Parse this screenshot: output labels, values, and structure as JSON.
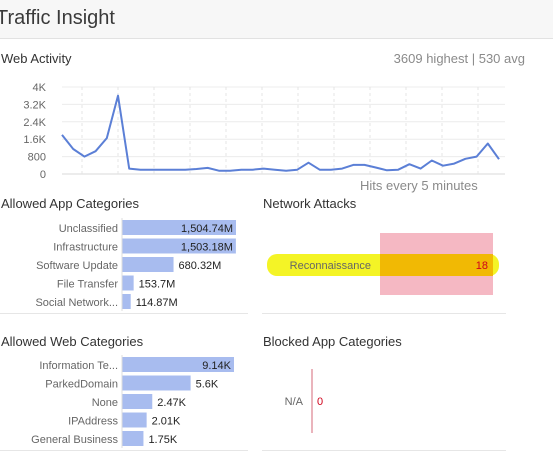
{
  "header": {
    "title": "Traffic Insight"
  },
  "web_activity": {
    "title": "Web Activity",
    "stats": "3609 highest | 530 avg",
    "footer": "Hits every 5 minutes",
    "y_ticks": [
      "0",
      "800",
      "1.6K",
      "2.4K",
      "3.2K",
      "4K"
    ],
    "line_color": "#5b7fd6"
  },
  "allowed_app": {
    "title": "Allowed App Categories",
    "bar_color": "#a8bcef"
  },
  "network_attacks": {
    "title": "Network Attacks",
    "bar_color": "#f5b8c3",
    "value_color": "#d0021b"
  },
  "allowed_web": {
    "title": "Allowed Web Categories",
    "bar_color": "#a8bcef"
  },
  "blocked_app": {
    "title": "Blocked App Categories",
    "value_color": "#d0021b"
  },
  "chart_data": [
    {
      "type": "line",
      "title": "Web Activity",
      "xlabel": "Hits every 5 minutes",
      "ylim": [
        0,
        4000
      ],
      "y_ticks": [
        0,
        800,
        1600,
        2400,
        3200,
        4000
      ],
      "series": [
        {
          "values": [
            1800,
            1150,
            800,
            1050,
            1650,
            3600,
            250,
            200,
            200,
            200,
            200,
            200,
            230,
            280,
            150,
            150,
            200,
            200,
            250,
            200,
            150,
            200,
            520,
            200,
            200,
            250,
            420,
            420,
            300,
            170,
            200,
            450,
            250,
            620,
            380,
            480,
            700,
            800,
            1400,
            680
          ]
        }
      ]
    },
    {
      "type": "bar",
      "title": "Allowed App Categories",
      "categories": [
        "Unclassified",
        "Infrastructure",
        "Software Update",
        "File Transfer",
        "Social Network..."
      ],
      "values": [
        1504.74,
        1503.18,
        680.32,
        153.7,
        114.87
      ],
      "value_labels": [
        "1,504.74M",
        "1,503.18M",
        "680.32M",
        "153.7M",
        "114.87M"
      ]
    },
    {
      "type": "bar",
      "title": "Network Attacks",
      "categories": [
        "Reconnaissance"
      ],
      "values": [
        18
      ],
      "value_labels": [
        "18"
      ]
    },
    {
      "type": "bar",
      "title": "Allowed Web Categories",
      "categories": [
        "Information Te...",
        "ParkedDomain",
        "None",
        "IPAddress",
        "General Business"
      ],
      "values": [
        9.14,
        5.6,
        2.47,
        2.01,
        1.75
      ],
      "value_labels": [
        "9.14K",
        "5.6K",
        "2.47K",
        "2.01K",
        "1.75K"
      ]
    },
    {
      "type": "bar",
      "title": "Blocked App Categories",
      "categories": [
        "N/A"
      ],
      "values": [
        0
      ],
      "value_labels": [
        "0"
      ]
    }
  ]
}
